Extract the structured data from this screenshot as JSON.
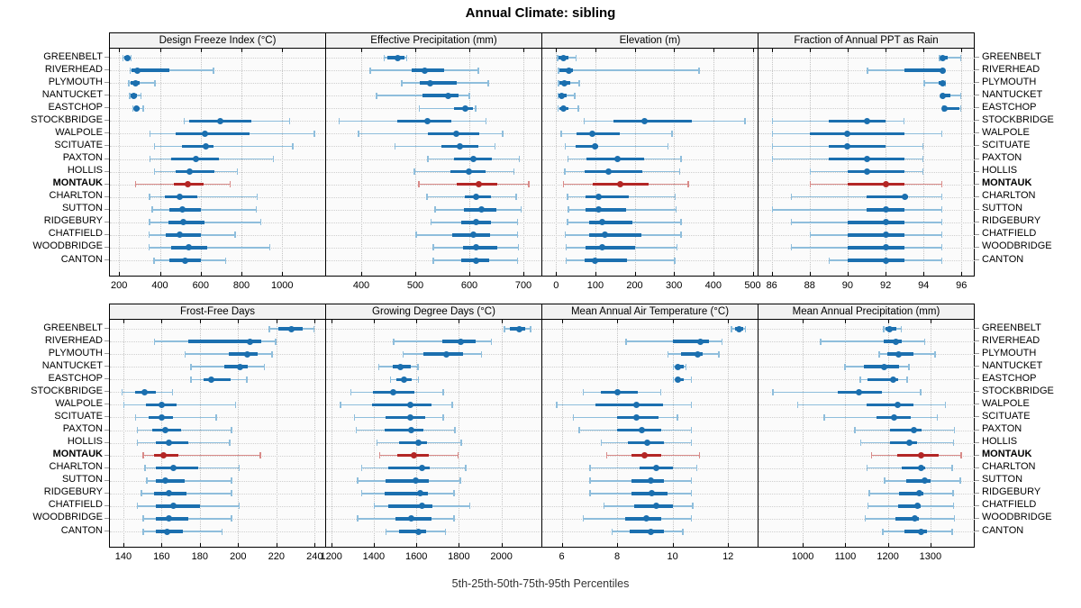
{
  "title": "Annual Climate: sibling",
  "caption": "5th-25th-50th-75th-95th Percentiles",
  "chart_data": {
    "type": "dot-interval-grid",
    "title": "Annual Climate: sibling",
    "caption": "5th-25th-50th-75th-95th Percentiles",
    "percentiles": [
      5,
      25,
      50,
      75,
      95
    ],
    "categories": [
      "GREENBELT",
      "RIVERHEAD",
      "PLYMOUTH",
      "NANTUCKET",
      "EASTCHOP",
      "STOCKBRIDGE",
      "WALPOLE",
      "SCITUATE",
      "PAXTON",
      "HOLLIS",
      "MONTAUK",
      "CHARLTON",
      "SUTTON",
      "RIDGEBURY",
      "CHATFIELD",
      "WOODBRIDGE",
      "CANTON"
    ],
    "highlight_category": "MONTAUK",
    "layout": {
      "rows": 2,
      "cols": 4,
      "row_labels_both_sides": true,
      "grid": "dotted"
    },
    "colors": {
      "series_main": "#1B6FAF",
      "series_light": "#8FBEDC",
      "highlight_main": "#B32625",
      "highlight_light": "#D98B89",
      "strip_bg": "#F2F2F2",
      "panel_bg": "#FBFBFB"
    },
    "panels": [
      {
        "title": "Design Freeze Index (°C)",
        "ticks": [
          200,
          400,
          600,
          800,
          1000
        ],
        "xlim": [
          155,
          1215
        ],
        "rows": [
          [
            215,
            225,
            240,
            250,
            262
          ],
          [
            250,
            262,
            290,
            448,
            665
          ],
          [
            245,
            255,
            280,
            300,
            380
          ],
          [
            248,
            256,
            272,
            286,
            310
          ],
          [
            264,
            272,
            286,
            300,
            322
          ],
          [
            515,
            545,
            695,
            850,
            1040
          ],
          [
            348,
            478,
            620,
            840,
            1160
          ],
          [
            370,
            510,
            625,
            665,
            1055
          ],
          [
            348,
            456,
            575,
            690,
            960
          ],
          [
            370,
            476,
            545,
            668,
            782
          ],
          [
            277,
            468,
            538,
            616,
            748
          ],
          [
            345,
            425,
            495,
            585,
            880
          ],
          [
            358,
            448,
            512,
            600,
            875
          ],
          [
            346,
            442,
            515,
            618,
            898
          ],
          [
            343,
            427,
            498,
            600,
            773
          ],
          [
            343,
            454,
            542,
            632,
            942
          ],
          [
            368,
            448,
            522,
            600,
            725
          ]
        ]
      },
      {
        "title": "Effective Precipitation (mm)",
        "ticks": [
          400,
          500,
          600,
          700
        ],
        "xlim": [
          335,
          735
        ],
        "rows": [
          [
            441,
            448,
            468,
            480,
            485
          ],
          [
            415,
            494,
            518,
            554,
            618
          ],
          [
            474,
            509,
            527,
            577,
            636
          ],
          [
            427,
            513,
            561,
            580,
            601
          ],
          [
            506,
            571,
            593,
            606,
            613
          ],
          [
            358,
            466,
            522,
            567,
            632
          ],
          [
            394,
            524,
            576,
            618,
            663
          ],
          [
            461,
            548,
            582,
            616,
            649
          ],
          [
            522,
            572,
            608,
            641,
            694
          ],
          [
            497,
            565,
            599,
            630,
            684
          ],
          [
            505,
            576,
            618,
            651,
            711
          ],
          [
            520,
            592,
            612,
            640,
            688
          ],
          [
            535,
            590,
            622,
            650,
            697
          ],
          [
            528,
            585,
            613,
            640,
            690
          ],
          [
            500,
            568,
            608,
            638,
            690
          ],
          [
            532,
            588,
            612,
            652,
            692
          ],
          [
            532,
            585,
            612,
            637,
            690
          ]
        ]
      },
      {
        "title": "Elevation (m)",
        "ticks": [
          0,
          100,
          200,
          300,
          400,
          500
        ],
        "xlim": [
          -35,
          515
        ],
        "rows": [
          [
            2,
            7,
            19,
            32,
            52
          ],
          [
            4,
            9,
            33,
            42,
            365
          ],
          [
            4,
            9,
            20,
            36,
            60
          ],
          [
            3,
            7,
            14,
            27,
            49
          ],
          [
            3,
            8,
            18,
            32,
            58
          ],
          [
            70,
            146,
            224,
            345,
            482
          ],
          [
            11,
            51,
            93,
            161,
            297
          ],
          [
            22,
            50,
            100,
            108,
            286
          ],
          [
            28,
            77,
            156,
            224,
            319
          ],
          [
            20,
            72,
            134,
            220,
            316
          ],
          [
            17,
            93,
            163,
            235,
            338
          ],
          [
            27,
            75,
            108,
            184,
            305
          ],
          [
            30,
            74,
            108,
            178,
            307
          ],
          [
            27,
            83,
            118,
            195,
            319
          ],
          [
            22,
            85,
            125,
            216,
            320
          ],
          [
            24,
            74,
            118,
            201,
            309
          ],
          [
            24,
            72,
            100,
            180,
            303
          ]
        ]
      },
      {
        "title": "Fraction of Annual PPT as Rain",
        "ticks": [
          86,
          88,
          90,
          92,
          94,
          96
        ],
        "xlim": [
          85.3,
          96.7
        ],
        "rows": [
          [
            94.8,
            95,
            95,
            95.3,
            96
          ],
          [
            91,
            93,
            95,
            95,
            95
          ],
          [
            94,
            94.8,
            95,
            95,
            95.2
          ],
          [
            95,
            95,
            95,
            95.4,
            96
          ],
          [
            95,
            95,
            95.1,
            95.9,
            96
          ],
          [
            86,
            89,
            91,
            92,
            93
          ],
          [
            86,
            88,
            90,
            93,
            95
          ],
          [
            86,
            89,
            90,
            92,
            94
          ],
          [
            86,
            89,
            91,
            93,
            94
          ],
          [
            88,
            90,
            91,
            93,
            94
          ],
          [
            88,
            90,
            92,
            93,
            95
          ],
          [
            87,
            91,
            93,
            93.2,
            95
          ],
          [
            86,
            91,
            92,
            93,
            95
          ],
          [
            87,
            90,
            92,
            93,
            95
          ],
          [
            88,
            90,
            92,
            93,
            95
          ],
          [
            87,
            90,
            92,
            93,
            95
          ],
          [
            89,
            90,
            92,
            93,
            95
          ]
        ]
      },
      {
        "title": "Frost-Free Days",
        "ticks": [
          140,
          160,
          180,
          200,
          220,
          240
        ],
        "xlim": [
          133,
          246
        ],
        "rows": [
          [
            216,
            221,
            228,
            234,
            240
          ],
          [
            156,
            174,
            206,
            212,
            220
          ],
          [
            172,
            195,
            205,
            210,
            218
          ],
          [
            175,
            193,
            201,
            205,
            214
          ],
          [
            175,
            182,
            186,
            196,
            205
          ],
          [
            139,
            146,
            151,
            157,
            166
          ],
          [
            140,
            152,
            160,
            168,
            199
          ],
          [
            146,
            153,
            160,
            166,
            189
          ],
          [
            147,
            155,
            162,
            170,
            197
          ],
          [
            147,
            157,
            164,
            174,
            196
          ],
          [
            150,
            156,
            161,
            169,
            212
          ],
          [
            151,
            157,
            166,
            179,
            201
          ],
          [
            152,
            157,
            162,
            172,
            197
          ],
          [
            149,
            156,
            164,
            173,
            197
          ],
          [
            147,
            157,
            166,
            180,
            201
          ],
          [
            150,
            157,
            164,
            174,
            197
          ],
          [
            150,
            157,
            163,
            171,
            192
          ]
        ]
      },
      {
        "title": "Growing Degree Days (°C)",
        "ticks": [
          1200,
          1400,
          1600,
          1800,
          2000
        ],
        "xlim": [
          1176,
          2192
        ],
        "rows": [
          [
            2010,
            2040,
            2085,
            2110,
            2140
          ],
          [
            1490,
            1720,
            1810,
            1880,
            1955
          ],
          [
            1535,
            1635,
            1740,
            1820,
            1910
          ],
          [
            1420,
            1490,
            1525,
            1575,
            1610
          ],
          [
            1475,
            1505,
            1540,
            1577,
            1612
          ],
          [
            1290,
            1395,
            1490,
            1590,
            1730
          ],
          [
            1240,
            1390,
            1570,
            1670,
            1772
          ],
          [
            1305,
            1455,
            1570,
            1640,
            1730
          ],
          [
            1315,
            1450,
            1575,
            1635,
            1785
          ],
          [
            1412,
            1520,
            1610,
            1650,
            1815
          ],
          [
            1425,
            1510,
            1590,
            1660,
            1800
          ],
          [
            1340,
            1470,
            1625,
            1665,
            1835
          ],
          [
            1320,
            1455,
            1595,
            1660,
            1810
          ],
          [
            1340,
            1450,
            1618,
            1655,
            1780
          ],
          [
            1400,
            1470,
            1625,
            1675,
            1855
          ],
          [
            1320,
            1500,
            1575,
            1673,
            1780
          ],
          [
            1455,
            1520,
            1610,
            1645,
            1740
          ]
        ]
      },
      {
        "title": "Mean Annual Air Temperature (°C)",
        "ticks": [
          6,
          8,
          10,
          12
        ],
        "xlim": [
          5.3,
          13.1
        ],
        "rows": [
          [
            12.1,
            12.25,
            12.4,
            12.55,
            12.65
          ],
          [
            8.3,
            10.0,
            11.0,
            11.3,
            11.8
          ],
          [
            9.8,
            10.3,
            10.9,
            11.1,
            11.7
          ],
          [
            10.0,
            10.1,
            10.2,
            10.4,
            10.5
          ],
          [
            10.0,
            10.1,
            10.2,
            10.4,
            10.7
          ],
          [
            6.75,
            7.4,
            8.0,
            8.75,
            9.6
          ],
          [
            5.8,
            7.2,
            8.7,
            9.65,
            10.7
          ],
          [
            6.4,
            8.0,
            8.7,
            9.5,
            10.2
          ],
          [
            6.6,
            8.0,
            8.9,
            9.6,
            10.7
          ],
          [
            7.4,
            8.4,
            9.1,
            9.7,
            10.7
          ],
          [
            7.6,
            8.5,
            9.0,
            9.6,
            11.0
          ],
          [
            7.0,
            8.8,
            9.4,
            10.0,
            10.9
          ],
          [
            7.0,
            8.5,
            9.2,
            9.7,
            10.7
          ],
          [
            7.0,
            8.5,
            9.25,
            9.8,
            10.7
          ],
          [
            7.5,
            8.6,
            9.4,
            10.0,
            10.75
          ],
          [
            6.75,
            8.3,
            9.05,
            9.6,
            10.7
          ],
          [
            7.8,
            8.45,
            9.2,
            9.7,
            10.4
          ]
        ]
      },
      {
        "title": "Mean Annual Precipitation (mm)",
        "ticks": [
          1000,
          1100,
          1200,
          1300
        ],
        "xlim": [
          896,
          1404
        ],
        "rows": [
          [
            1188,
            1195,
            1204,
            1219,
            1233
          ],
          [
            1040,
            1190,
            1218,
            1232,
            1288
          ],
          [
            1178,
            1198,
            1225,
            1260,
            1312
          ],
          [
            1098,
            1144,
            1191,
            1226,
            1251
          ],
          [
            1134,
            1152,
            1212,
            1225,
            1247
          ],
          [
            928,
            1082,
            1131,
            1186,
            1278
          ],
          [
            986,
            1149,
            1223,
            1261,
            1337
          ],
          [
            1049,
            1174,
            1214,
            1253,
            1318
          ],
          [
            1121,
            1204,
            1260,
            1279,
            1358
          ],
          [
            1135,
            1204,
            1251,
            1268,
            1356
          ],
          [
            1160,
            1221,
            1279,
            1320,
            1374
          ],
          [
            1149,
            1232,
            1278,
            1288,
            1353
          ],
          [
            1191,
            1244,
            1286,
            1300,
            1372
          ],
          [
            1155,
            1226,
            1274,
            1284,
            1355
          ],
          [
            1152,
            1225,
            1270,
            1278,
            1356
          ],
          [
            1145,
            1218,
            1264,
            1272,
            1358
          ],
          [
            1186,
            1239,
            1278,
            1292,
            1353
          ]
        ]
      }
    ]
  }
}
